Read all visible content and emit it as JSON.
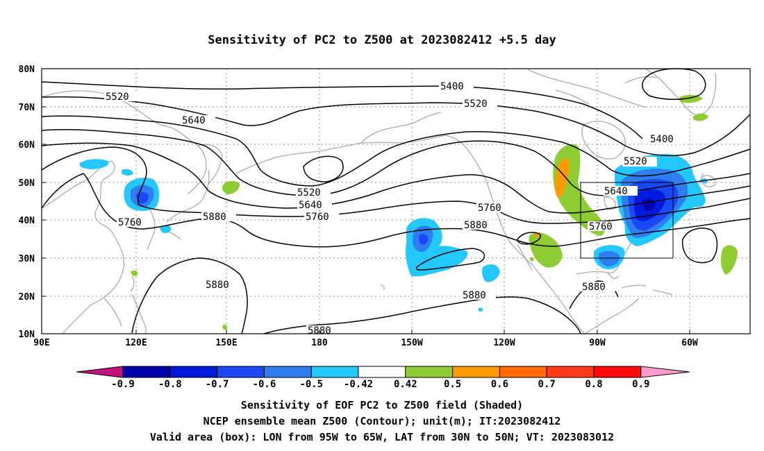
{
  "title": "Sensitivity of PC2 to Z500 at 2023082412 +5.5 day",
  "map": {
    "lat_labels": [
      "80N",
      "70N",
      "60N",
      "50N",
      "40N",
      "30N",
      "20N",
      "10N"
    ],
    "lon_labels": [
      "90E",
      "120E",
      "150E",
      "180",
      "150W",
      "120W",
      "90W",
      "60W"
    ],
    "contour_labels": [
      "5400",
      "5400",
      "5520",
      "5520",
      "5520",
      "5520",
      "5640",
      "5640",
      "5640",
      "5760",
      "5760",
      "5760",
      "5760",
      "5880",
      "5880",
      "5880",
      "5880",
      "5880",
      "5880"
    ],
    "valid_box": {
      "lon_min": "95W",
      "lon_max": "65W",
      "lat_min": "30N",
      "lat_max": "50N"
    }
  },
  "colorbar": {
    "labels": [
      "-0.9",
      "-0.8",
      "-0.7",
      "-0.6",
      "-0.5",
      "-0.42",
      "0.42",
      "0.5",
      "0.6",
      "0.7",
      "0.8",
      "0.9"
    ],
    "colors": [
      "#0000aa",
      "#0019dd",
      "#1a48f4",
      "#2f7ef0",
      "#22c8ff",
      "#ffffff",
      "#8fcc33",
      "#ff9a00",
      "#ff6a00",
      "#ff3a14",
      "#ff0a0a"
    ],
    "low_arrow_color": "#c2117a",
    "high_arrow_color": "#ff99cc"
  },
  "footer": {
    "line1": "Sensitivity of EOF PC2 to Z500 field (Shaded)",
    "line2": "NCEP ensemble mean Z500 (Contour); unit(m); IT:2023082412",
    "line3": "Valid area (box): LON from 95W to 65W, LAT from 30N to 50N; VT: 2023083012"
  }
}
